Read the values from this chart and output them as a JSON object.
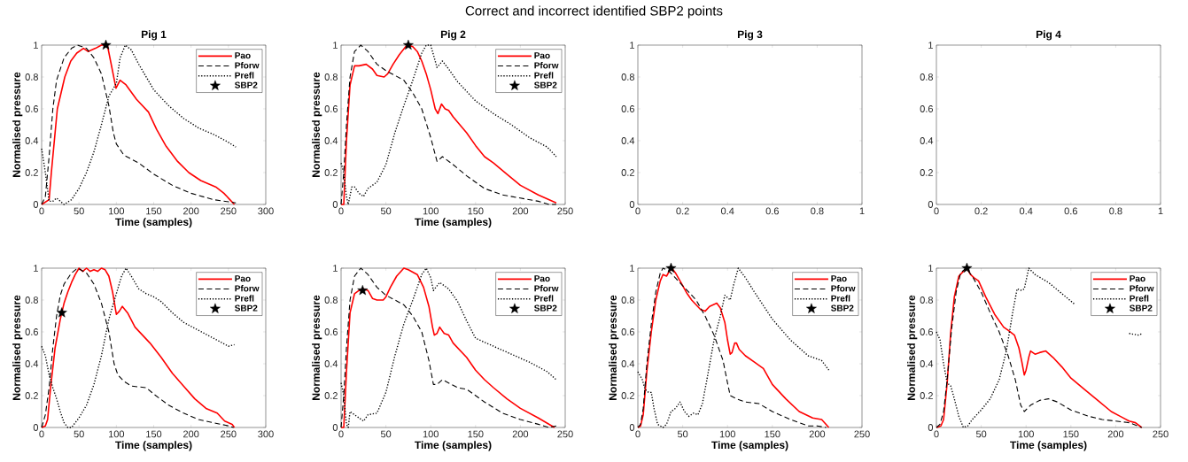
{
  "chart_data": [
    {
      "type": "line",
      "title": "Pig 1",
      "xlabel": "Time (samples)",
      "ylabel": "Normalised pressure",
      "annotations": [
        "Correct and incorrect identified SBP2 points"
      ],
      "xlim": [
        0,
        300
      ],
      "xticks": [
        0,
        50,
        100,
        150,
        200,
        250,
        300
      ],
      "ylim": [
        0,
        1
      ],
      "yticks": [
        0,
        0.2,
        0.4,
        0.6,
        0.8,
        1
      ],
      "legend": "top right",
      "series": [
        {
          "name": "Pao",
          "color": "#ff0000",
          "line_style": "solid",
          "x": [
            0,
            10,
            13,
            21,
            31,
            39,
            47,
            56,
            62,
            72,
            80,
            88,
            99.5,
            105,
            113,
            127,
            143,
            154,
            166,
            182,
            197,
            213,
            233,
            244,
            252,
            258
          ],
          "values": [
            0,
            0.03,
            0.2,
            0.6,
            0.8,
            0.9,
            0.95,
            0.98,
            0.96,
            0.98,
            1.0,
            1.0,
            0.73,
            0.78,
            0.75,
            0.66,
            0.58,
            0.47,
            0.37,
            0.27,
            0.2,
            0.15,
            0.11,
            0.07,
            0.03,
            0.0
          ]
        },
        {
          "name": "Pforw",
          "color": "#000000",
          "line_style": "dashed",
          "x": [
            0,
            5,
            10,
            15,
            20,
            30,
            40,
            48,
            60,
            70,
            80,
            90,
            96,
            100,
            110,
            130,
            150,
            175,
            200,
            230,
            260
          ],
          "values": [
            0,
            0.05,
            0.3,
            0.6,
            0.78,
            0.92,
            0.98,
            1.0,
            0.98,
            0.92,
            0.82,
            0.62,
            0.45,
            0.38,
            0.31,
            0.26,
            0.19,
            0.12,
            0.07,
            0.03,
            0.01
          ]
        },
        {
          "name": "Prefl",
          "color": "#000000",
          "line_style": "dotted",
          "x": [
            0,
            5,
            10,
            15,
            20,
            25,
            30,
            40,
            50,
            60,
            70,
            80,
            90,
            100,
            105,
            112,
            120,
            130,
            140,
            150,
            170,
            190,
            210,
            230,
            250,
            260
          ],
          "values": [
            0.35,
            0.2,
            0.02,
            0.02,
            0.04,
            0.02,
            0.0,
            0.03,
            0.1,
            0.2,
            0.33,
            0.5,
            0.68,
            0.76,
            0.92,
            1.0,
            0.97,
            0.88,
            0.8,
            0.72,
            0.62,
            0.54,
            0.48,
            0.44,
            0.39,
            0.36
          ]
        },
        {
          "name": "SBP2",
          "type": "scatter",
          "marker": "star",
          "color": "#000000",
          "x": [
            86
          ],
          "values": [
            1.0
          ]
        }
      ]
    },
    {
      "type": "line",
      "title": "Pig 2",
      "xlabel": "Time (samples)",
      "ylabel": "Normalised pressure",
      "xlim": [
        0,
        250
      ],
      "xticks": [
        0,
        50,
        100,
        150,
        200,
        250
      ],
      "ylim": [
        0,
        1
      ],
      "yticks": [
        0,
        0.2,
        0.4,
        0.6,
        0.8,
        1
      ],
      "legend": "top right",
      "series": [
        {
          "name": "Pao",
          "color": "#ff0000",
          "line_style": "solid",
          "x": [
            0,
            3,
            6,
            10,
            15,
            20,
            28,
            35,
            40,
            48,
            52,
            58,
            65,
            72,
            75,
            80,
            85,
            90,
            95,
            100,
            105,
            108,
            112,
            116,
            120,
            125,
            140,
            150,
            160,
            170,
            185,
            200,
            220,
            240
          ],
          "values": [
            0,
            0,
            0.4,
            0.75,
            0.87,
            0.87,
            0.88,
            0.85,
            0.81,
            0.8,
            0.82,
            0.88,
            0.94,
            0.99,
            1.0,
            0.99,
            0.96,
            0.9,
            0.82,
            0.72,
            0.6,
            0.57,
            0.63,
            0.6,
            0.59,
            0.55,
            0.45,
            0.37,
            0.3,
            0.26,
            0.19,
            0.12,
            0.06,
            0.01
          ]
        },
        {
          "name": "Pforw",
          "color": "#000000",
          "line_style": "dashed",
          "x": [
            0,
            3,
            6,
            10,
            15,
            22,
            30,
            40,
            50,
            60,
            70,
            80,
            90,
            100,
            107,
            113,
            125,
            140,
            160,
            180,
            200,
            220,
            232,
            240
          ],
          "values": [
            0,
            0.2,
            0.5,
            0.8,
            0.96,
            1.0,
            0.96,
            0.88,
            0.84,
            0.81,
            0.78,
            0.7,
            0.6,
            0.42,
            0.27,
            0.3,
            0.25,
            0.18,
            0.1,
            0.06,
            0.04,
            0.02,
            0.0,
            0.0
          ]
        },
        {
          "name": "Prefl",
          "color": "#000000",
          "line_style": "dotted",
          "x": [
            0,
            3,
            6,
            8,
            12,
            15,
            20,
            25,
            30,
            40,
            50,
            60,
            70,
            80,
            90,
            95,
            100,
            107,
            113,
            120,
            130,
            150,
            170,
            190,
            210,
            230,
            240
          ],
          "values": [
            0.26,
            0.2,
            0.05,
            0.0,
            0.11,
            0.11,
            0.07,
            0.05,
            0.1,
            0.14,
            0.25,
            0.45,
            0.62,
            0.78,
            0.95,
            1.0,
            1.0,
            0.86,
            0.9,
            0.85,
            0.77,
            0.65,
            0.57,
            0.5,
            0.42,
            0.36,
            0.3
          ]
        },
        {
          "name": "SBP2",
          "type": "scatter",
          "marker": "star",
          "color": "#000000",
          "x": [
            75
          ],
          "values": [
            1.0
          ]
        }
      ]
    },
    {
      "type": "line",
      "title": "Pig 3",
      "xlim": [
        0,
        1
      ],
      "xticks": [
        0,
        0.2,
        0.4,
        0.6,
        0.8,
        1
      ],
      "ylim": [
        0,
        1
      ],
      "yticks": [
        0,
        0.2,
        0.4,
        0.6,
        0.8,
        1
      ]
    },
    {
      "type": "line",
      "title": "Pig 4",
      "xlim": [
        0,
        1
      ],
      "xticks": [
        0,
        0.2,
        0.4,
        0.6,
        0.8,
        1
      ],
      "ylim": [
        0,
        1
      ],
      "yticks": [
        0,
        0.2,
        0.4,
        0.6,
        0.8,
        1
      ]
    },
    {
      "type": "line",
      "xlabel": "Time (samples)",
      "ylabel": "Normalised pressure",
      "xlim": [
        0,
        300
      ],
      "xticks": [
        0,
        50,
        100,
        150,
        200,
        250,
        300
      ],
      "ylim": [
        0,
        1
      ],
      "yticks": [
        0,
        0.2,
        0.4,
        0.6,
        0.8,
        1
      ],
      "legend": "top right",
      "series": [
        {
          "name": "Pao",
          "color": "#ff0000",
          "line_style": "solid",
          "x": [
            0,
            5,
            8,
            12,
            18,
            25,
            30,
            35,
            40,
            45,
            50,
            55,
            60,
            65,
            70,
            75,
            80,
            85,
            90,
            95,
            100,
            104,
            108,
            115,
            125,
            135,
            145,
            160,
            175,
            190,
            205,
            220,
            235,
            245,
            255,
            258
          ],
          "values": [
            0,
            0.01,
            0.05,
            0.25,
            0.5,
            0.68,
            0.78,
            0.85,
            0.91,
            0.96,
            1.0,
            0.98,
            1.0,
            0.98,
            0.99,
            0.98,
            1.0,
            0.99,
            0.95,
            0.85,
            0.71,
            0.73,
            0.76,
            0.72,
            0.63,
            0.58,
            0.53,
            0.44,
            0.34,
            0.26,
            0.18,
            0.12,
            0.09,
            0.04,
            0.02,
            0.0
          ]
        },
        {
          "name": "Pforw",
          "color": "#000000",
          "line_style": "dashed",
          "x": [
            0,
            5,
            10,
            15,
            20,
            25,
            30,
            40,
            48,
            60,
            70,
            80,
            90,
            97,
            102,
            110,
            120,
            140,
            150,
            170,
            190,
            210,
            230,
            250,
            257
          ],
          "values": [
            0,
            0.08,
            0.25,
            0.5,
            0.7,
            0.83,
            0.9,
            0.97,
            1.0,
            0.97,
            0.9,
            0.78,
            0.6,
            0.4,
            0.33,
            0.29,
            0.26,
            0.25,
            0.21,
            0.14,
            0.09,
            0.05,
            0.03,
            0.01,
            0.0
          ]
        },
        {
          "name": "Prefl",
          "color": "#000000",
          "line_style": "dotted",
          "x": [
            0,
            5,
            10,
            15,
            20,
            25,
            30,
            35,
            40,
            50,
            60,
            70,
            80,
            90,
            100,
            107,
            113,
            120,
            130,
            140,
            150,
            160,
            175,
            190,
            210,
            230,
            250,
            258
          ],
          "values": [
            0.51,
            0.45,
            0.33,
            0.25,
            0.18,
            0.1,
            0.03,
            0.0,
            0.0,
            0.06,
            0.14,
            0.27,
            0.45,
            0.68,
            0.84,
            0.95,
            1.0,
            0.95,
            0.87,
            0.84,
            0.82,
            0.79,
            0.72,
            0.66,
            0.61,
            0.56,
            0.51,
            0.52
          ]
        },
        {
          "name": "SBP2",
          "type": "scatter",
          "marker": "star",
          "color": "#000000",
          "x": [
            27
          ],
          "values": [
            0.72
          ]
        }
      ]
    },
    {
      "type": "line",
      "xlabel": "Time (samples)",
      "ylabel": "Normalised pressure",
      "xlim": [
        0,
        250
      ],
      "xticks": [
        0,
        50,
        100,
        150,
        200,
        250
      ],
      "ylim": [
        0,
        1
      ],
      "yticks": [
        0,
        0.2,
        0.4,
        0.6,
        0.8,
        1
      ],
      "legend": "top right",
      "series": [
        {
          "name": "Pao",
          "color": "#ff0000",
          "line_style": "solid",
          "x": [
            0,
            3,
            6,
            10,
            15,
            20,
            25,
            30,
            35,
            40,
            47,
            50,
            55,
            62,
            70,
            75,
            85,
            92,
            98,
            102,
            104,
            107,
            110,
            115,
            120,
            125,
            140,
            150,
            160,
            170,
            185,
            200,
            220,
            238
          ],
          "values": [
            0,
            0,
            0.35,
            0.72,
            0.84,
            0.86,
            0.87,
            0.86,
            0.81,
            0.8,
            0.8,
            0.82,
            0.88,
            0.95,
            1.0,
            0.99,
            0.96,
            0.88,
            0.76,
            0.63,
            0.58,
            0.59,
            0.63,
            0.59,
            0.58,
            0.53,
            0.44,
            0.36,
            0.3,
            0.25,
            0.18,
            0.12,
            0.06,
            0.0
          ]
        },
        {
          "name": "Pforw",
          "color": "#000000",
          "line_style": "dashed",
          "x": [
            0,
            3,
            6,
            10,
            15,
            22,
            30,
            40,
            50,
            60,
            70,
            80,
            90,
            98,
            103,
            107,
            113,
            130,
            140,
            160,
            180,
            200,
            220,
            232,
            240
          ],
          "values": [
            0,
            0.2,
            0.5,
            0.8,
            0.95,
            1.0,
            0.96,
            0.88,
            0.83,
            0.8,
            0.77,
            0.7,
            0.6,
            0.42,
            0.27,
            0.27,
            0.3,
            0.25,
            0.24,
            0.16,
            0.09,
            0.05,
            0.02,
            0.0,
            0.01
          ]
        },
        {
          "name": "Prefl",
          "color": "#000000",
          "line_style": "dotted",
          "x": [
            0,
            3,
            6,
            8,
            10,
            15,
            25,
            30,
            40,
            50,
            60,
            70,
            80,
            90,
            95,
            100,
            103,
            110,
            120,
            130,
            140,
            150,
            170,
            190,
            210,
            230,
            240
          ],
          "values": [
            0.28,
            0.2,
            0.02,
            0.0,
            0.1,
            0.08,
            0.04,
            0.08,
            0.09,
            0.22,
            0.45,
            0.65,
            0.8,
            0.96,
            1.0,
            0.94,
            0.86,
            0.91,
            0.87,
            0.79,
            0.67,
            0.56,
            0.51,
            0.46,
            0.41,
            0.35,
            0.3
          ]
        },
        {
          "name": "SBP2",
          "type": "scatter",
          "marker": "star",
          "color": "#000000",
          "x": [
            24
          ],
          "values": [
            0.86
          ]
        }
      ]
    },
    {
      "type": "line",
      "xlabel": "Time (samples)",
      "ylabel": "Normalised pressure",
      "xlim": [
        0,
        250
      ],
      "xticks": [
        0,
        50,
        100,
        150,
        200,
        250
      ],
      "ylim": [
        0,
        1
      ],
      "yticks": [
        0,
        0.2,
        0.4,
        0.6,
        0.8,
        1
      ],
      "legend": "top right",
      "series": [
        {
          "name": "Pao",
          "color": "#ff0000",
          "line_style": "solid",
          "x": [
            0,
            3,
            6,
            10,
            15,
            20,
            25,
            28,
            32,
            35,
            38,
            42,
            48,
            55,
            60,
            70,
            75,
            80,
            88,
            92,
            97,
            100,
            103,
            105,
            108,
            110,
            113,
            120,
            130,
            140,
            150,
            165,
            180,
            195,
            205,
            213
          ],
          "values": [
            0,
            0.01,
            0.08,
            0.35,
            0.6,
            0.8,
            0.92,
            0.96,
            0.95,
            0.98,
            1.0,
            0.97,
            0.91,
            0.84,
            0.8,
            0.74,
            0.73,
            0.76,
            0.78,
            0.75,
            0.66,
            0.55,
            0.46,
            0.47,
            0.53,
            0.53,
            0.49,
            0.45,
            0.41,
            0.37,
            0.27,
            0.18,
            0.1,
            0.06,
            0.05,
            0.0
          ]
        },
        {
          "name": "Pforw",
          "color": "#000000",
          "line_style": "dashed",
          "x": [
            0,
            3,
            6,
            10,
            15,
            20,
            25,
            28,
            35,
            45,
            55,
            65,
            75,
            85,
            95,
            100,
            103,
            110,
            120,
            135,
            150,
            170,
            190,
            200,
            210
          ],
          "values": [
            0,
            0.02,
            0.12,
            0.4,
            0.65,
            0.85,
            0.97,
            1.0,
            0.98,
            0.92,
            0.86,
            0.8,
            0.7,
            0.58,
            0.42,
            0.28,
            0.2,
            0.18,
            0.16,
            0.15,
            0.1,
            0.05,
            0.01,
            0.01,
            0.0
          ]
        },
        {
          "name": "Prefl",
          "color": "#000000",
          "line_style": "dotted",
          "x": [
            0,
            5,
            8,
            12,
            15,
            18,
            22,
            28,
            32,
            37,
            42,
            47,
            52,
            57,
            62,
            67,
            72,
            77,
            85,
            92,
            97,
            103,
            107,
            112,
            120,
            130,
            150,
            170,
            190,
            205,
            213
          ],
          "values": [
            0.35,
            0.3,
            0.24,
            0.22,
            0.22,
            0.12,
            0.02,
            0.0,
            0.02,
            0.1,
            0.12,
            0.16,
            0.1,
            0.07,
            0.09,
            0.08,
            0.15,
            0.3,
            0.55,
            0.7,
            0.83,
            0.8,
            0.9,
            1.0,
            0.94,
            0.85,
            0.68,
            0.55,
            0.45,
            0.42,
            0.36
          ]
        },
        {
          "name": "SBP2",
          "type": "scatter",
          "marker": "star",
          "color": "#000000",
          "x": [
            37
          ],
          "values": [
            1.0
          ]
        }
      ]
    },
    {
      "type": "line",
      "xlabel": "Time (samples)",
      "ylabel": "Normalised pressure",
      "xlim": [
        0,
        250
      ],
      "xticks": [
        0,
        50,
        100,
        150,
        200,
        250
      ],
      "ylim": [
        0,
        1
      ],
      "yticks": [
        0,
        0.2,
        0.4,
        0.6,
        0.8,
        1
      ],
      "legend": "top right",
      "series": [
        {
          "name": "Pao",
          "color": "#ff0000",
          "line_style": "solid",
          "x": [
            0,
            5,
            8,
            12,
            16,
            20,
            25,
            30,
            34,
            38,
            42,
            47,
            55,
            65,
            75,
            80,
            87,
            92,
            95,
            98,
            100,
            103,
            105,
            110,
            115,
            122,
            130,
            140,
            150,
            165,
            180,
            195,
            205,
            215,
            222,
            229
          ],
          "values": [
            0,
            0.01,
            0.05,
            0.28,
            0.6,
            0.82,
            0.95,
            0.98,
            1.0,
            0.96,
            0.94,
            0.92,
            0.82,
            0.71,
            0.63,
            0.61,
            0.58,
            0.5,
            0.42,
            0.33,
            0.36,
            0.44,
            0.48,
            0.46,
            0.47,
            0.48,
            0.44,
            0.38,
            0.31,
            0.24,
            0.17,
            0.1,
            0.07,
            0.04,
            0.03,
            0.0
          ]
        },
        {
          "name": "Pforw",
          "color": "#000000",
          "line_style": "dashed",
          "x": [
            0,
            4,
            8,
            12,
            17,
            22,
            27,
            33,
            40,
            50,
            60,
            70,
            80,
            88,
            94,
            98,
            105,
            115,
            125,
            135,
            150,
            170,
            185,
            200,
            215,
            229
          ],
          "values": [
            0,
            0.02,
            0.1,
            0.3,
            0.62,
            0.85,
            0.97,
            1.0,
            0.95,
            0.85,
            0.72,
            0.6,
            0.45,
            0.3,
            0.14,
            0.1,
            0.14,
            0.17,
            0.18,
            0.16,
            0.11,
            0.07,
            0.05,
            0.04,
            0.03,
            0.0
          ]
        },
        {
          "name": "Prefl",
          "color": "#000000",
          "line_style": "dotted",
          "x": [
            0,
            4,
            8,
            12,
            16,
            20,
            25,
            30,
            35,
            40,
            50,
            60,
            70,
            78,
            85,
            90,
            95,
            98,
            103,
            110,
            125,
            140,
            155,
            180,
            200,
            215,
            225,
            230
          ],
          "values": [
            0.6,
            0.55,
            0.4,
            0.28,
            0.26,
            0.18,
            0.07,
            0.0,
            0.01,
            0.05,
            0.11,
            0.18,
            0.3,
            0.48,
            0.72,
            0.87,
            0.86,
            0.87,
            1.0,
            0.96,
            0.91,
            0.84,
            0.77,
            null,
            null,
            0.59,
            0.58,
            0.59
          ]
        },
        {
          "name": "SBP2",
          "type": "scatter",
          "marker": "star",
          "color": "#000000",
          "x": [
            34
          ],
          "values": [
            1.0
          ]
        }
      ]
    }
  ]
}
